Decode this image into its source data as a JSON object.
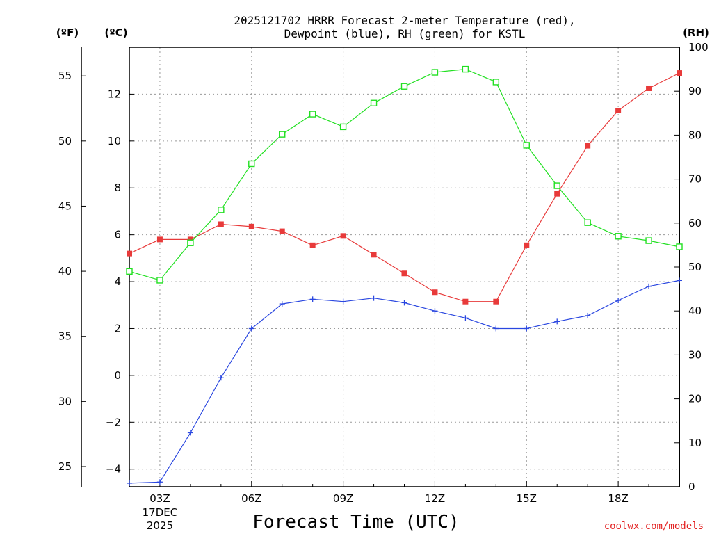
{
  "chart_data": {
    "type": "line",
    "title_lines": [
      "2025121702 HRRR Forecast 2-meter Temperature (red),",
      "Dewpoint (blue), RH (green) for KSTL"
    ],
    "xlabel": "Forecast Time (UTC)",
    "credit": "coolwx.com/models",
    "units": {
      "fahrenheit": "(ºF)",
      "celsius": "(ºC)",
      "rh": "(RH)"
    },
    "x": [
      2,
      3,
      4,
      5,
      6,
      7,
      8,
      9,
      10,
      11,
      12,
      13,
      14,
      15,
      16,
      17,
      18,
      19,
      20
    ],
    "xlim": [
      2,
      20
    ],
    "x_ticks": [
      {
        "x": 3,
        "label": "03Z"
      },
      {
        "x": 6,
        "label": "06Z"
      },
      {
        "x": 9,
        "label": "09Z"
      },
      {
        "x": 12,
        "label": "12Z"
      },
      {
        "x": 15,
        "label": "15Z"
      },
      {
        "x": 18,
        "label": "18Z"
      }
    ],
    "date_label": [
      "17DEC",
      "2025"
    ],
    "ylim_celsius": [
      -4.75,
      14.0
    ],
    "y_ticks_celsius": [
      -4,
      -2,
      0,
      2,
      4,
      6,
      8,
      10,
      12
    ],
    "y_ticks_fahrenheit": [
      25,
      30,
      35,
      40,
      45,
      50,
      55
    ],
    "ylim_rh": [
      0,
      100
    ],
    "y_ticks_rh": [
      0,
      10,
      20,
      30,
      40,
      50,
      60,
      70,
      80,
      90,
      100
    ],
    "series": [
      {
        "name": "2-meter Temperature",
        "color": "#e83a3a",
        "marker": "filled-square",
        "axis": "celsius",
        "values": [
          5.2,
          5.8,
          5.8,
          6.45,
          6.35,
          6.15,
          5.55,
          5.95,
          5.15,
          4.35,
          3.55,
          3.15,
          3.15,
          5.55,
          7.75,
          9.8,
          11.3,
          12.25,
          12.9
        ]
      },
      {
        "name": "Dewpoint",
        "color": "#2a47e0",
        "marker": "plus",
        "axis": "celsius",
        "values": [
          -4.6,
          -4.55,
          -2.45,
          -0.1,
          2.0,
          3.05,
          3.25,
          3.15,
          3.3,
          3.1,
          2.75,
          2.45,
          2.0,
          2.0,
          2.3,
          2.55,
          3.2,
          3.8,
          4.05
        ]
      },
      {
        "name": "RH",
        "color": "#22e022",
        "marker": "open-square",
        "axis": "rh",
        "values": [
          49,
          47,
          55.5,
          63,
          73.5,
          80.2,
          84.8,
          81.9,
          87.3,
          91.1,
          94.3,
          95,
          92.1,
          77.7,
          68.5,
          60.1,
          57,
          56,
          54.6
        ]
      }
    ]
  }
}
